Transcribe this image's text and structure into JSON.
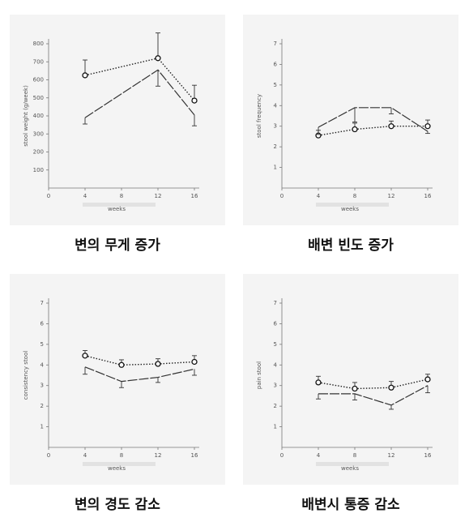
{
  "chart_data": [
    {
      "type": "line",
      "caption": "변의 무게 증가",
      "ylabel": "stool weight (g/week)",
      "xlabel": "weeks",
      "x": [
        4,
        12,
        16
      ],
      "xlim": [
        0,
        16
      ],
      "xticks": [
        0,
        4,
        8,
        12,
        16
      ],
      "ylim": [
        0,
        800
      ],
      "yticks": [
        100,
        200,
        300,
        400,
        500,
        600,
        700,
        800
      ],
      "series": [
        {
          "style": "dotted",
          "color": "#222",
          "values": [
            625,
            720,
            485
          ],
          "errors": [
            85,
            140,
            85
          ]
        },
        {
          "style": "dashed",
          "color": "#333",
          "values": [
            390,
            655,
            405
          ],
          "errors": [
            35,
            90,
            60
          ]
        }
      ]
    },
    {
      "type": "line",
      "caption": "배변 빈도 증가",
      "ylabel": "stool frequency",
      "xlabel": "weeks",
      "x": [
        4,
        8,
        12,
        16
      ],
      "xlim": [
        0,
        16
      ],
      "xticks": [
        0,
        4,
        8,
        12,
        16
      ],
      "ylim": [
        0,
        7
      ],
      "yticks": [
        1,
        2,
        3,
        4,
        5,
        6,
        7
      ],
      "series": [
        {
          "style": "dotted",
          "color": "#222",
          "values": [
            2.55,
            2.85,
            3.0,
            3.0
          ],
          "errors": [
            0.25,
            0.3,
            0.25,
            0.3
          ]
        },
        {
          "style": "dashed",
          "color": "#333",
          "values": [
            2.95,
            3.9,
            3.9,
            2.75
          ],
          "errors": [
            0.35,
            0.7,
            0.3,
            0.1
          ]
        }
      ]
    },
    {
      "type": "line",
      "caption": "변의 경도 감소",
      "ylabel": "consistency stool",
      "xlabel": "weeks",
      "x": [
        4,
        8,
        12,
        16
      ],
      "xlim": [
        0,
        16
      ],
      "xticks": [
        0,
        4,
        8,
        12,
        16
      ],
      "ylim": [
        0,
        7
      ],
      "yticks": [
        1,
        2,
        3,
        4,
        5,
        6,
        7
      ],
      "series": [
        {
          "style": "dotted",
          "color": "#222",
          "values": [
            4.45,
            4.0,
            4.05,
            4.15
          ],
          "errors": [
            0.25,
            0.25,
            0.25,
            0.3
          ]
        },
        {
          "style": "dashed",
          "color": "#333",
          "values": [
            3.9,
            3.2,
            3.4,
            3.8
          ],
          "errors": [
            0.35,
            0.3,
            0.25,
            0.3
          ]
        }
      ]
    },
    {
      "type": "line",
      "caption": "배변시 통증 감소",
      "ylabel": "pain stool",
      "xlabel": "weeks",
      "x": [
        4,
        8,
        12,
        16
      ],
      "xlim": [
        0,
        16
      ],
      "xticks": [
        0,
        4,
        8,
        12,
        16
      ],
      "ylim": [
        0,
        7
      ],
      "yticks": [
        1,
        2,
        3,
        4,
        5,
        6,
        7
      ],
      "series": [
        {
          "style": "dotted",
          "color": "#222",
          "values": [
            3.15,
            2.85,
            2.9,
            3.3
          ],
          "errors": [
            0.3,
            0.3,
            0.3,
            0.25
          ]
        },
        {
          "style": "dashed",
          "color": "#333",
          "values": [
            2.6,
            2.6,
            2.05,
            3.0
          ],
          "errors": [
            0.25,
            0.3,
            0.2,
            0.35
          ]
        }
      ]
    }
  ]
}
